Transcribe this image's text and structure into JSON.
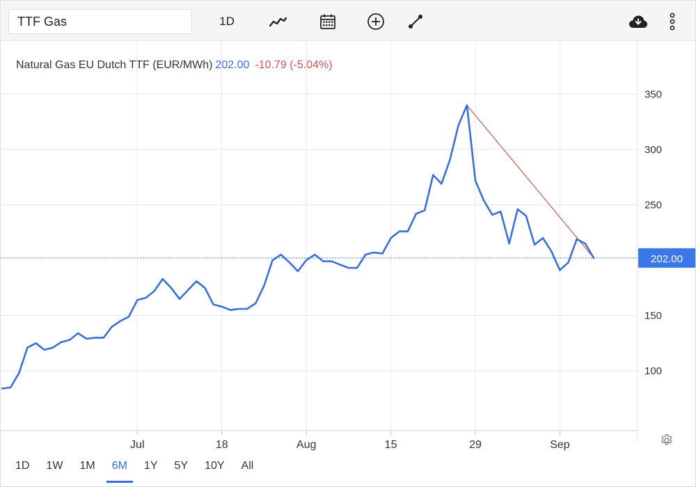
{
  "toolbar": {
    "search_value": "TTF Gas",
    "interval_label": "1D",
    "icons": [
      "line-chart-icon",
      "calendar-icon",
      "add-circle-icon",
      "draw-line-icon",
      "cloud-download-icon",
      "more-vertical-icon"
    ]
  },
  "header": {
    "instrument": "Natural Gas EU Dutch TTF (EUR/MWh)",
    "price": "202.00",
    "change": "-10.79 (-5.04%)"
  },
  "ranges": {
    "items": [
      "1D",
      "1W",
      "1M",
      "6M",
      "1Y",
      "5Y",
      "10Y",
      "All"
    ],
    "active": "6M"
  },
  "colors": {
    "line": "#3a6fd8",
    "trend": "#c0392b",
    "price_tag": "#3b78e7",
    "grid": "#e8e8e8"
  },
  "chart_data": {
    "type": "line",
    "yticks": [
      "350",
      "300",
      "250",
      "150",
      "100"
    ],
    "ylim": [
      46,
      398
    ],
    "xticks": [
      {
        "label": "Jul",
        "index": 16
      },
      {
        "label": "18",
        "index": 26
      },
      {
        "label": "Aug",
        "index": 36
      },
      {
        "label": "15",
        "index": 46
      },
      {
        "label": "29",
        "index": 56
      },
      {
        "label": "Sep",
        "index": 66
      }
    ],
    "current_price": 202.0,
    "current_price_label": "202.00",
    "series": [
      {
        "values": [
          84,
          85,
          98,
          121,
          125,
          119,
          121,
          126,
          128,
          134,
          129,
          130,
          130,
          140,
          145,
          149,
          164,
          166,
          172,
          183,
          175,
          165,
          173,
          181,
          175,
          160,
          158,
          155,
          156,
          156,
          161,
          177,
          200,
          205,
          198,
          190,
          200,
          205,
          199,
          199,
          196,
          193,
          193,
          205,
          207,
          206,
          220,
          226,
          226,
          242,
          245,
          277,
          269,
          291,
          322,
          340,
          272,
          254,
          241,
          244,
          215,
          246,
          240,
          214,
          220,
          208,
          191,
          198,
          219,
          215,
          202
        ]
      }
    ],
    "trendline": {
      "from_index": 55,
      "from_value": 340,
      "to_index": 70,
      "to_value": 202
    }
  }
}
